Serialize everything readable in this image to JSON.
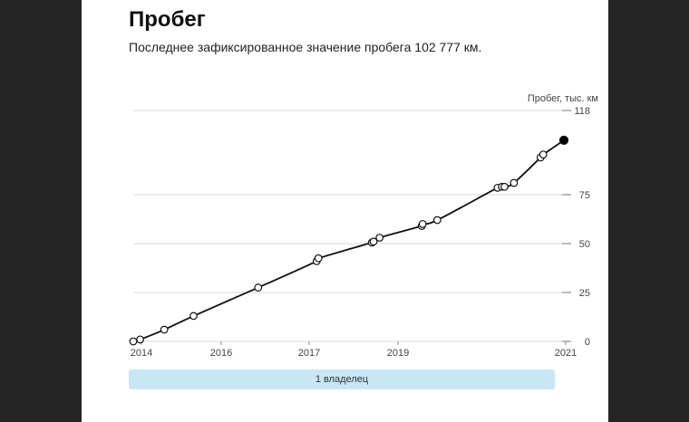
{
  "header": {
    "title": "Пробег",
    "subtitle": "Последнее зафиксированное значение пробега 102 777 км."
  },
  "owners_bar": {
    "label": "1 владелец",
    "color": "#c9e6f5"
  },
  "chart_data": {
    "type": "line",
    "title": "Пробег",
    "ylabel": "Пробег, тыс. км",
    "xlabel": "",
    "ylim": [
      0,
      118
    ],
    "y_ticks": [
      0,
      25,
      50,
      75,
      118
    ],
    "x_ticks": [
      "2014",
      "2016",
      "2017",
      "2019",
      "2021"
    ],
    "grid": true,
    "series": [
      {
        "x": [
          0,
          0.8,
          3.6,
          7.0,
          14.5,
          21.3,
          21.5,
          27.7,
          27.9,
          28.6,
          33.5,
          33.6,
          35.3,
          42.3,
          42.8,
          43.1,
          44.2,
          47.3,
          47.6,
          50.0
        ],
        "y": [
          0,
          1,
          6,
          13,
          27.5,
          41,
          42.5,
          50.5,
          51,
          53,
          59,
          60,
          62,
          78.5,
          79,
          79,
          81,
          94,
          95.5,
          102.8
        ],
        "last_point_filled": true
      }
    ],
    "point_color": "#ffffff",
    "last_point_color": "#000000",
    "line_color": "#111111",
    "grid_color": "#d9d9d9"
  }
}
